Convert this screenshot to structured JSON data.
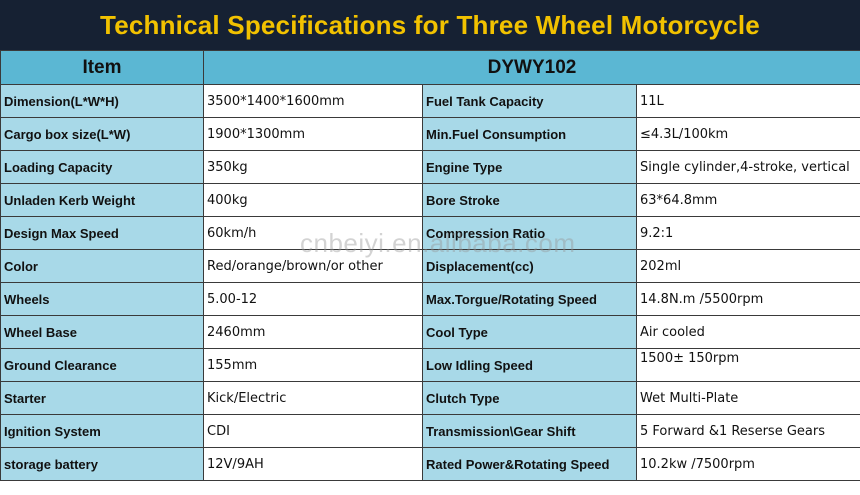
{
  "title": "Technical Specifications for Three Wheel Motorcycle",
  "header": {
    "item": "Item",
    "model": "DYWY102"
  },
  "rows": [
    {
      "l1": "Dimension(L*W*H)",
      "v1": "3500*1400*1600mm",
      "l2": "Fuel Tank Capacity",
      "v2": "11L"
    },
    {
      "l1": "Cargo box size(L*W)",
      "v1": "1900*1300mm",
      "l2": "Min.Fuel Consumption",
      "v2": "≤4.3L/100km"
    },
    {
      "l1": "Loading Capacity",
      "v1": "350kg",
      "l2": "Engine Type",
      "v2": "Single cylinder,4-stroke, vertical"
    },
    {
      "l1": "Unladen Kerb Weight",
      "v1": "400kg",
      "l2": "Bore Stroke",
      "v2": "63*64.8mm"
    },
    {
      "l1": "Design Max Speed",
      "v1": "60km/h",
      "l2": "Compression Ratio",
      "v2": "9.2:1"
    },
    {
      "l1": "Color",
      "v1": "Red/orange/brown/or other",
      "l2": "Displacement(cc)",
      "v2": "202ml"
    },
    {
      "l1": "Wheels",
      "v1": "5.00-12",
      "l2": "Max.Torgue/Rotating Speed",
      "v2": "14.8N.m /5500rpm"
    },
    {
      "l1": "Wheel Base",
      "v1": "2460mm",
      "l2": "Cool Type",
      "v2": "Air cooled"
    },
    {
      "l1": "Ground Clearance",
      "v1": "155mm",
      "l2": "Low Idling Speed",
      "v2": "1500± 150rpm"
    },
    {
      "l1": "Starter",
      "v1": "Kick/Electric",
      "l2": "Clutch Type",
      "v2": "Wet Multi-Plate"
    },
    {
      "l1": "Ignition System",
      "v1": "CDI",
      "l2": "Transmission\\Gear Shift",
      "v2": "5 Forward &1 Reserse Gears"
    },
    {
      "l1": "storage battery",
      "v1": "12V/9AH",
      "l2": "Rated Power&Rotating Speed",
      "v2": "10.2kw /7500rpm"
    }
  ],
  "watermark": "cnbeiyi.en.alibaba.com",
  "colors": {
    "title_bg": "#162133",
    "title_text": "#f2c200",
    "header_bg": "#5bb7d3",
    "label_bg": "#a8d9e8",
    "value_bg": "#ffffff"
  }
}
